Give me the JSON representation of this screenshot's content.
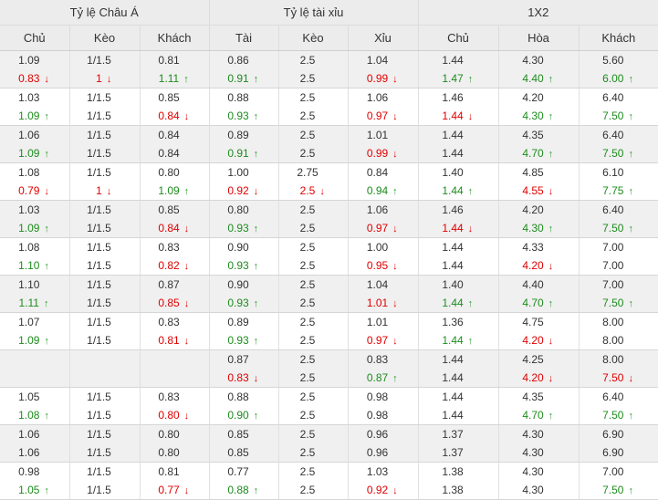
{
  "headers": {
    "groups": [
      "Tỷ lệ Châu Á",
      "Tỷ lệ tài xỉu",
      "1X2"
    ],
    "columns": [
      "Chủ",
      "Kèo",
      "Khách",
      "Tài",
      "Kèo",
      "Xỉu",
      "Chủ",
      "Hòa",
      "Khách"
    ]
  },
  "rows": [
    {
      "open": [
        "1.09",
        "1/1.5",
        "0.81",
        "0.86",
        "2.5",
        "1.04",
        "1.44",
        "4.30",
        "5.60"
      ],
      "live": [
        [
          "0.83",
          "down"
        ],
        [
          "1",
          "down"
        ],
        [
          "1.11",
          "up"
        ],
        [
          "0.91",
          "up"
        ],
        [
          "2.5",
          ""
        ],
        [
          "0.99",
          "down"
        ],
        [
          "1.47",
          "up"
        ],
        [
          "4.40",
          "up"
        ],
        [
          "6.00",
          "up"
        ]
      ]
    },
    {
      "open": [
        "1.03",
        "1/1.5",
        "0.85",
        "0.88",
        "2.5",
        "1.06",
        "1.46",
        "4.20",
        "6.40"
      ],
      "live": [
        [
          "1.09",
          "up"
        ],
        [
          "1/1.5",
          ""
        ],
        [
          "0.84",
          "down"
        ],
        [
          "0.93",
          "up"
        ],
        [
          "2.5",
          ""
        ],
        [
          "0.97",
          "down"
        ],
        [
          "1.44",
          "down"
        ],
        [
          "4.30",
          "up"
        ],
        [
          "7.50",
          "up"
        ]
      ]
    },
    {
      "open": [
        "1.06",
        "1/1.5",
        "0.84",
        "0.89",
        "2.5",
        "1.01",
        "1.44",
        "4.35",
        "6.40"
      ],
      "live": [
        [
          "1.09",
          "up"
        ],
        [
          "1/1.5",
          ""
        ],
        [
          "0.84",
          ""
        ],
        [
          "0.91",
          "up"
        ],
        [
          "2.5",
          ""
        ],
        [
          "0.99",
          "down"
        ],
        [
          "1.44",
          ""
        ],
        [
          "4.70",
          "up"
        ],
        [
          "7.50",
          "up"
        ]
      ]
    },
    {
      "open": [
        "1.08",
        "1/1.5",
        "0.80",
        "1.00",
        "2.75",
        "0.84",
        "1.40",
        "4.85",
        "6.10"
      ],
      "live": [
        [
          "0.79",
          "down"
        ],
        [
          "1",
          "down"
        ],
        [
          "1.09",
          "up"
        ],
        [
          "0.92",
          "down"
        ],
        [
          "2.5",
          "down"
        ],
        [
          "0.94",
          "up"
        ],
        [
          "1.44",
          "up"
        ],
        [
          "4.55",
          "down"
        ],
        [
          "7.75",
          "up"
        ]
      ]
    },
    {
      "open": [
        "1.03",
        "1/1.5",
        "0.85",
        "0.80",
        "2.5",
        "1.06",
        "1.46",
        "4.20",
        "6.40"
      ],
      "live": [
        [
          "1.09",
          "up"
        ],
        [
          "1/1.5",
          ""
        ],
        [
          "0.84",
          "down"
        ],
        [
          "0.93",
          "up"
        ],
        [
          "2.5",
          ""
        ],
        [
          "0.97",
          "down"
        ],
        [
          "1.44",
          "down"
        ],
        [
          "4.30",
          "up"
        ],
        [
          "7.50",
          "up"
        ]
      ]
    },
    {
      "open": [
        "1.08",
        "1/1.5",
        "0.83",
        "0.90",
        "2.5",
        "1.00",
        "1.44",
        "4.33",
        "7.00"
      ],
      "live": [
        [
          "1.10",
          "up"
        ],
        [
          "1/1.5",
          ""
        ],
        [
          "0.82",
          "down"
        ],
        [
          "0.93",
          "up"
        ],
        [
          "2.5",
          ""
        ],
        [
          "0.95",
          "down"
        ],
        [
          "1.44",
          ""
        ],
        [
          "4.20",
          "down"
        ],
        [
          "7.00",
          ""
        ]
      ]
    },
    {
      "open": [
        "1.10",
        "1/1.5",
        "0.87",
        "0.90",
        "2.5",
        "1.04",
        "1.40",
        "4.40",
        "7.00"
      ],
      "live": [
        [
          "1.11",
          "up"
        ],
        [
          "1/1.5",
          ""
        ],
        [
          "0.85",
          "down"
        ],
        [
          "0.93",
          "up"
        ],
        [
          "2.5",
          ""
        ],
        [
          "1.01",
          "down"
        ],
        [
          "1.44",
          "up"
        ],
        [
          "4.70",
          "up"
        ],
        [
          "7.50",
          "up"
        ]
      ]
    },
    {
      "open": [
        "1.07",
        "1/1.5",
        "0.83",
        "0.89",
        "2.5",
        "1.01",
        "1.36",
        "4.75",
        "8.00"
      ],
      "live": [
        [
          "1.09",
          "up"
        ],
        [
          "1/1.5",
          ""
        ],
        [
          "0.81",
          "down"
        ],
        [
          "0.93",
          "up"
        ],
        [
          "2.5",
          ""
        ],
        [
          "0.97",
          "down"
        ],
        [
          "1.44",
          "up"
        ],
        [
          "4.20",
          "down"
        ],
        [
          "8.00",
          ""
        ]
      ]
    },
    {
      "open": [
        "",
        "",
        "",
        "0.87",
        "2.5",
        "0.83",
        "1.44",
        "4.25",
        "8.00"
      ],
      "live": [
        [
          "",
          ""
        ],
        [
          "",
          ""
        ],
        [
          "",
          ""
        ],
        [
          "0.83",
          "down"
        ],
        [
          "2.5",
          ""
        ],
        [
          "0.87",
          "up"
        ],
        [
          "1.44",
          ""
        ],
        [
          "4.20",
          "down"
        ],
        [
          "7.50",
          "down"
        ]
      ]
    },
    {
      "open": [
        "1.05",
        "1/1.5",
        "0.83",
        "0.88",
        "2.5",
        "0.98",
        "1.44",
        "4.35",
        "6.40"
      ],
      "live": [
        [
          "1.08",
          "up"
        ],
        [
          "1/1.5",
          ""
        ],
        [
          "0.80",
          "down"
        ],
        [
          "0.90",
          "up"
        ],
        [
          "2.5",
          ""
        ],
        [
          "0.98",
          ""
        ],
        [
          "1.44",
          ""
        ],
        [
          "4.70",
          "up"
        ],
        [
          "7.50",
          "up"
        ]
      ]
    },
    {
      "open": [
        "1.06",
        "1/1.5",
        "0.80",
        "0.85",
        "2.5",
        "0.96",
        "1.37",
        "4.30",
        "6.90"
      ],
      "live": [
        [
          "1.06",
          ""
        ],
        [
          "1/1.5",
          ""
        ],
        [
          "0.80",
          ""
        ],
        [
          "0.85",
          ""
        ],
        [
          "2.5",
          ""
        ],
        [
          "0.96",
          ""
        ],
        [
          "1.37",
          ""
        ],
        [
          "4.30",
          ""
        ],
        [
          "6.90",
          ""
        ]
      ]
    },
    {
      "open": [
        "0.98",
        "1/1.5",
        "0.81",
        "0.77",
        "2.5",
        "1.03",
        "1.38",
        "4.30",
        "7.00"
      ],
      "live": [
        [
          "1.05",
          "up"
        ],
        [
          "1/1.5",
          ""
        ],
        [
          "0.77",
          "down"
        ],
        [
          "0.88",
          "up"
        ],
        [
          "2.5",
          ""
        ],
        [
          "0.92",
          "down"
        ],
        [
          "1.38",
          ""
        ],
        [
          "4.30",
          ""
        ],
        [
          "7.50",
          "up"
        ]
      ]
    }
  ],
  "colors": {
    "up": "#1d8c1d",
    "down": "#e00000",
    "header_bg": "#ececec",
    "shade_bg": "#f0f0f0"
  }
}
